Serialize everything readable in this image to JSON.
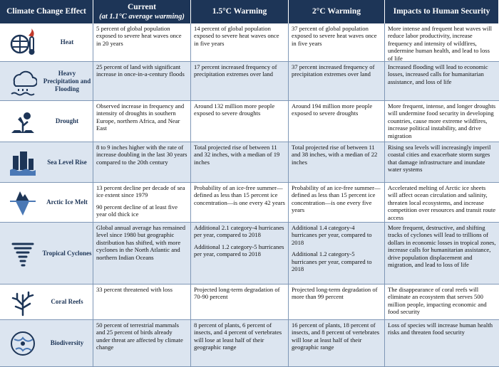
{
  "table": {
    "columns": [
      {
        "title": "Climate Change Effect"
      },
      {
        "title": "Current",
        "subtitle": "(at 1.1°C average warming)"
      },
      {
        "title": "1.5°C Warming"
      },
      {
        "title": "2°C Warming"
      },
      {
        "title": "Impacts to Human Security"
      }
    ],
    "rows": [
      {
        "effect": "Heat",
        "cells": [
          [
            "5 percent of global population exposed to severe heat waves once in 20 years"
          ],
          [
            "14 percent of global population exposed to severe heat waves once in five years"
          ],
          [
            "37 percent of global population exposed to severe heat waves once in five years"
          ],
          [
            "More intense and frequent heat waves will reduce labor productivity, increase frequency and intensity of wildfires, undermine human health, and lead to loss of life"
          ]
        ]
      },
      {
        "effect": "Heavy Precipitation and Flooding",
        "cells": [
          [
            "25 percent of land with significant increase in once-in-a-century floods"
          ],
          [
            "17 percent increased frequency of precipitation extremes over land"
          ],
          [
            "37 percent increased frequency of precipitation extremes over land"
          ],
          [
            "Increased flooding will lead to economic losses, increased calls for humanitarian assistance, and loss of life"
          ]
        ]
      },
      {
        "effect": "Drought",
        "cells": [
          [
            "Observed increase in frequency and intensity of droughts in southern Europe, northern Africa, and Near East"
          ],
          [
            "Around 132 million more people exposed to severe droughts"
          ],
          [
            "Around 194 million more people exposed to severe droughts"
          ],
          [
            "More frequent, intense, and longer droughts will undermine food security in developing countries, cause more extreme wildfires, increase political instability, and drive migration"
          ]
        ]
      },
      {
        "effect": "Sea Level Rise",
        "cells": [
          [
            "8 to 9 inches higher with the rate of increase doubling in the last 30 years compared to the 20th century"
          ],
          [
            "Total projected rise of between 11 and 32 inches, with a median of 19 inches"
          ],
          [
            "Total projected rise of between 11 and 38 inches, with a median of 22 inches"
          ],
          [
            "Rising sea levels will increasingly imperil coastal cities and exacerbate storm surges that damage infrastructure and inundate water systems"
          ]
        ]
      },
      {
        "effect": "Arctic Ice Melt",
        "cells": [
          [
            "13 percent decline per decade of sea ice extent since 1979",
            "90 percent decline of at least five year old thick ice"
          ],
          [
            "Probability of an ice-free summer—defined as less than 15 percent ice concentration—is one every 42 years"
          ],
          [
            "Probability of an ice-free summer—defined as less than 15 percent ice concentration—is one every five years"
          ],
          [
            "Accelerated melting of Arctic ice sheets will affect ocean circulation and salinity, threaten local ecosystems, and increase competition over resources and transit route access"
          ]
        ]
      },
      {
        "effect": "Tropical Cyclones",
        "cells": [
          [
            "Global annual average has remained level since 1980 but geographic distribution has shifted, with more cyclones in the North Atlantic and northern Indian Oceans"
          ],
          [
            "Additional 2.1 category-4 hurricanes per year, compared to 2018",
            "Additional 1.2 category-5 hurricanes per year, compared to 2018"
          ],
          [
            "Additional 1.4 category-4 hurricanes per year, compared to 2018",
            "Additional 1.2 category-5 hurricanes per year, compared to 2018"
          ],
          [
            "More frequent, destructive, and shifting tracks of cyclones will lead to trillions of dollars in economic losses in tropical zones, increase calls for humanitarian assistance, drive population displacement and migration, and lead to loss of life"
          ]
        ]
      },
      {
        "effect": "Coral Reefs",
        "cells": [
          [
            "33 percent threatened with loss"
          ],
          [
            "Projected long-term degradation of 70-90 percent"
          ],
          [
            "Projected long-term degradation of more than 99 percent"
          ],
          [
            "The disappearance of coral reefs will eliminate an ecosystem that serves 500 million people, impacting economic and food security"
          ]
        ]
      },
      {
        "effect": "Biodiversity",
        "cells": [
          [
            "50 percent of terrestrial mammals and 25 percent of birds already under threat are affected by climate change"
          ],
          [
            "8 percent of plants, 6 percent of insects, and 4 percent of vertebrates will lose at least half of their geographic range"
          ],
          [
            "16 percent of plants, 18 percent of insects, and 8 percent of vertebrates will lose at least half of their geographic range"
          ],
          [
            "Loss of species will increase human health risks and threaten food security"
          ]
        ]
      }
    ]
  }
}
